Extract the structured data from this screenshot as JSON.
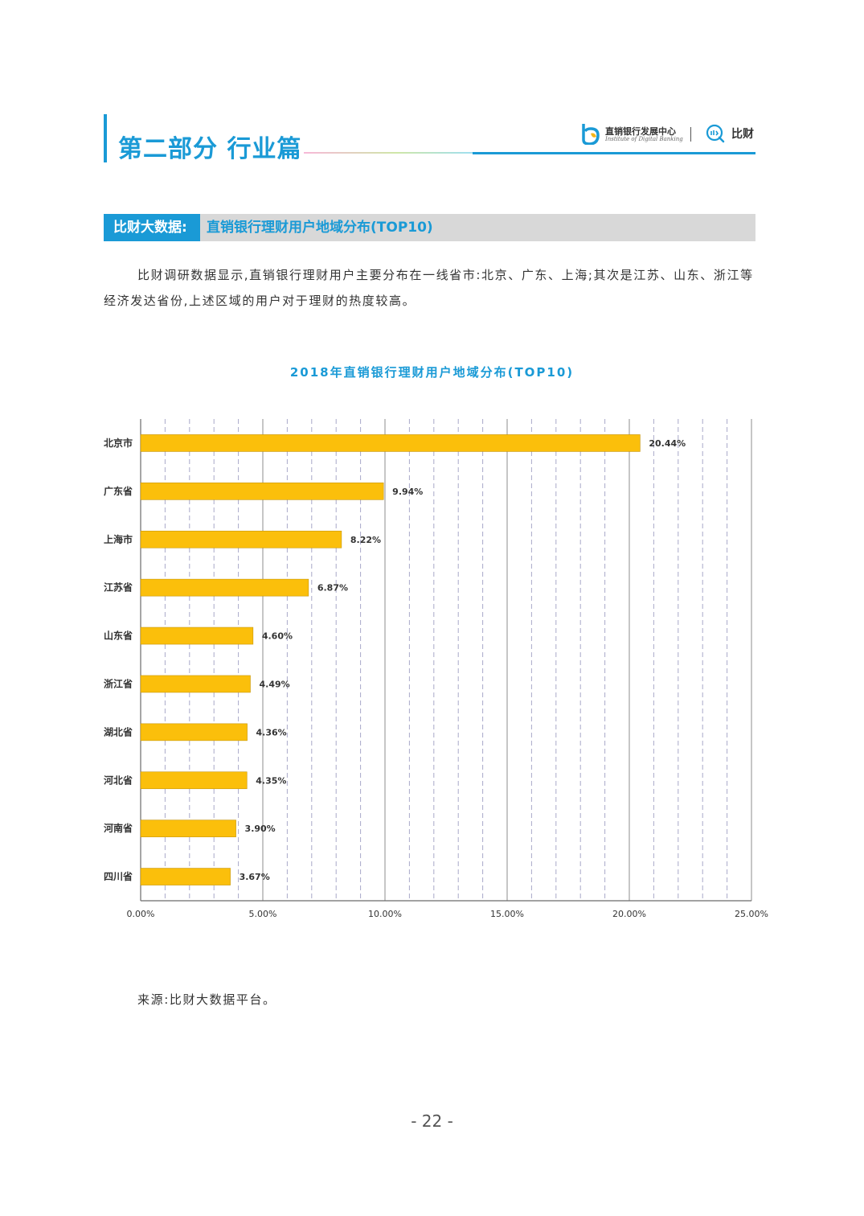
{
  "header": {
    "section_title": "第二部分 行业篇",
    "logo_cn": "直销银行发展中心",
    "logo_en": "Institute of Digital Banking",
    "brand": "比财"
  },
  "banner": {
    "tag": "比财大数据:",
    "title": "直销银行理财用户地域分布(TOP10)"
  },
  "paragraph": "比财调研数据显示,直销银行理财用户主要分布在一线省市:北京、广东、上海;其次是江苏、山东、浙江等经济发达省份,上述区域的用户对于理财的热度较高。",
  "chart_data": {
    "type": "bar",
    "orientation": "horizontal",
    "title": "2018年直销银行理财用户地域分布(TOP10)",
    "categories": [
      "北京市",
      "广东省",
      "上海市",
      "江苏省",
      "山东省",
      "浙江省",
      "湖北省",
      "河北省",
      "河南省",
      "四川省"
    ],
    "values": [
      20.44,
      9.94,
      8.22,
      6.87,
      4.6,
      4.49,
      4.36,
      4.35,
      3.9,
      3.67
    ],
    "value_labels": [
      "20.44%",
      "9.94%",
      "8.22%",
      "6.87%",
      "4.60%",
      "4.49%",
      "4.36%",
      "4.35%",
      "3.90%",
      "3.67%"
    ],
    "xlim": [
      0,
      25
    ],
    "x_ticks": [
      "0.00%",
      "5.00%",
      "10.00%",
      "15.00%",
      "20.00%",
      "25.00%"
    ],
    "grid": true,
    "bar_color": "#fbbf0b",
    "xlabel": "",
    "ylabel": ""
  },
  "source": "来源:比财大数据平台。",
  "page_number": "- 22 -",
  "colors": {
    "accent": "#1a9ad6",
    "bar": "#fbbf0b",
    "banner_bg": "#d8d8d8"
  }
}
